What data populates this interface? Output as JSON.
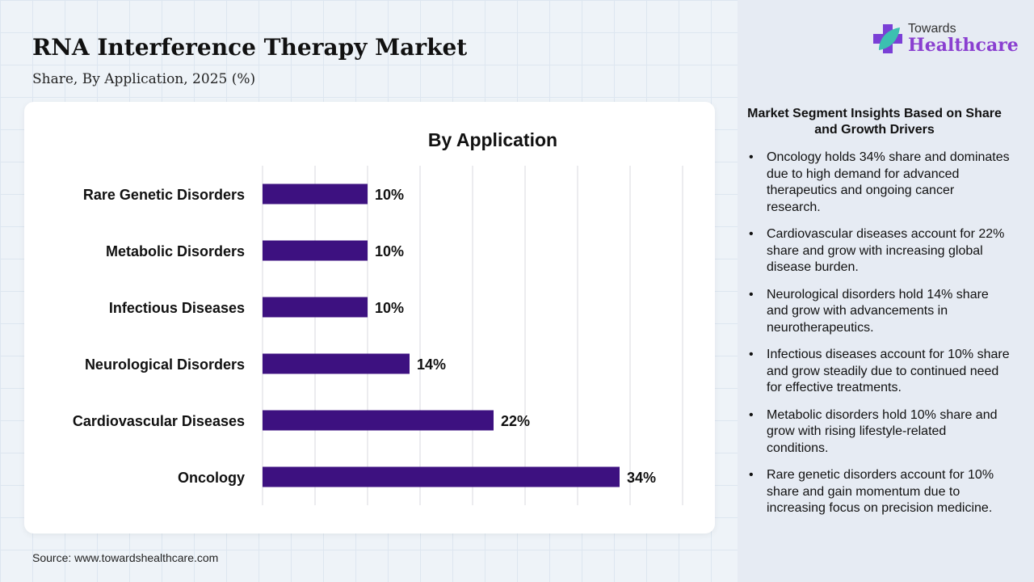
{
  "header": {
    "title": "RNA Interference Therapy Market",
    "subtitle": "Share, By Application, 2025 (%)"
  },
  "logo": {
    "line1": "Towards",
    "line2": "Healthcare"
  },
  "source": "Source: www.towardshealthcare.com",
  "colors": {
    "bar": "#3d1180",
    "brand": "#8a3fd0"
  },
  "chart_data": {
    "type": "bar",
    "orientation": "horizontal",
    "title": "By Application",
    "categories": [
      "Rare Genetic Disorders",
      "Metabolic Disorders",
      "Infectious Diseases",
      "Neurological Disorders",
      "Cardiovascular Diseases",
      "Oncology"
    ],
    "values": [
      10,
      10,
      10,
      14,
      22,
      34
    ],
    "labels": [
      "10%",
      "10%",
      "10%",
      "14%",
      "22%",
      "34%"
    ],
    "xlim": [
      0,
      40
    ],
    "grid": true,
    "xlabel": "",
    "ylabel": ""
  },
  "insights": {
    "title": "Market Segment Insights Based on Share and Growth Drivers",
    "items": [
      "Oncology holds 34% share and dominates due to high demand for advanced therapeutics and ongoing cancer research.",
      "Cardiovascular diseases account for 22% share and grow with increasing global disease burden.",
      "Neurological disorders hold 14% share and grow with advancements in neurotherapeutics.",
      "Infectious diseases account for 10% share and grow steadily due to continued need for effective treatments.",
      "Metabolic disorders hold 10% share and grow with rising lifestyle-related conditions.",
      "Rare genetic disorders account for 10% share and gain momentum due to increasing focus on precision medicine."
    ]
  }
}
